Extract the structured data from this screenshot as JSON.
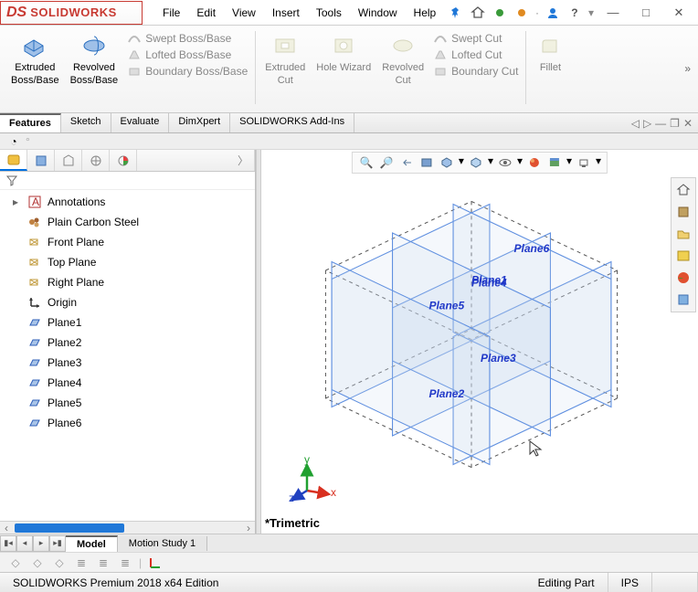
{
  "brand": {
    "ds": "DS",
    "name": "SOLIDWORKS"
  },
  "menu": [
    "File",
    "Edit",
    "View",
    "Insert",
    "Tools",
    "Window",
    "Help"
  ],
  "title_icons": {
    "pin": "#2078d8",
    "home": "#555",
    "dot_green": "#3a9a3a",
    "dot_orange": "#e08a20",
    "user": "#2078d8",
    "help": "#555"
  },
  "ribbon": {
    "extruded": {
      "label_l1": "Extruded",
      "label_l2": "Boss/Base",
      "color": "#2a6fbf"
    },
    "revolved": {
      "label_l1": "Revolved",
      "label_l2": "Boss/Base",
      "color": "#2a6fbf"
    },
    "boss_group": [
      {
        "label": "Swept Boss/Base",
        "enabled": false
      },
      {
        "label": "Lofted Boss/Base",
        "enabled": false
      },
      {
        "label": "Boundary Boss/Base",
        "enabled": false
      }
    ],
    "extruded_cut": {
      "label_l1": "Extruded",
      "label_l2": "Cut"
    },
    "hole_wizard": {
      "label_l1": "Hole Wizard",
      "label_l2": ""
    },
    "revolved_cut": {
      "label_l1": "Revolved",
      "label_l2": "Cut"
    },
    "cut_group": [
      {
        "label": "Swept Cut",
        "enabled": false
      },
      {
        "label": "Lofted Cut",
        "enabled": false
      },
      {
        "label": "Boundary Cut",
        "enabled": false
      }
    ],
    "fillet": {
      "label_l1": "Fillet",
      "label_l2": ""
    }
  },
  "tabs": [
    "Features",
    "Sketch",
    "Evaluate",
    "DimXpert",
    "SOLIDWORKS Add-Ins"
  ],
  "tabs_active_index": 0,
  "tree_tabs_count": 5,
  "tree": [
    {
      "type": "expand",
      "icon": "annotations",
      "label": "Annotations",
      "color": "#b03030"
    },
    {
      "type": "leaf",
      "icon": "material",
      "label": "Plain Carbon Steel",
      "color": "#b07030"
    },
    {
      "type": "leaf",
      "icon": "plane-ref",
      "label": "Front Plane",
      "color": "#c09838"
    },
    {
      "type": "leaf",
      "icon": "plane-ref",
      "label": "Top Plane",
      "color": "#c09838"
    },
    {
      "type": "leaf",
      "icon": "plane-ref",
      "label": "Right Plane",
      "color": "#c09838"
    },
    {
      "type": "leaf",
      "icon": "origin",
      "label": "Origin",
      "color": "#333"
    },
    {
      "type": "leaf",
      "icon": "plane",
      "label": "Plane1",
      "color": "#3060b8"
    },
    {
      "type": "leaf",
      "icon": "plane",
      "label": "Plane2",
      "color": "#3060b8"
    },
    {
      "type": "leaf",
      "icon": "plane",
      "label": "Plane3",
      "color": "#3060b8"
    },
    {
      "type": "leaf",
      "icon": "plane",
      "label": "Plane4",
      "color": "#3060b8"
    },
    {
      "type": "leaf",
      "icon": "plane",
      "label": "Plane5",
      "color": "#3060b8"
    },
    {
      "type": "leaf",
      "icon": "plane",
      "label": "Plane6",
      "color": "#3060b8"
    }
  ],
  "viewport": {
    "plane_labels": [
      "Plane1",
      "Plane2",
      "Plane3",
      "Plane4",
      "Plane5",
      "Plane6"
    ],
    "label_color": "#2038c8",
    "plane_stroke": "#6090e0",
    "plane_fill": "#c8d8f0",
    "plane_fill_opacity": 0.18,
    "dash": "4 4",
    "triad": {
      "x": "#d83020",
      "y": "#20a030",
      "z": "#2040c0"
    },
    "projection": "*Trimetric"
  },
  "bottom_tabs": [
    "Model",
    "Motion Study 1"
  ],
  "bottom_active_index": 0,
  "status": {
    "edition": "SOLIDWORKS Premium 2018 x64 Edition",
    "mode": "Editing Part",
    "units": "IPS"
  }
}
